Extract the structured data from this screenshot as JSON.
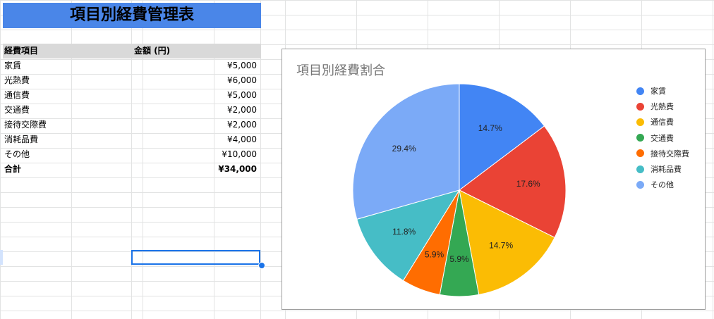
{
  "sheet": {
    "title": "項目別経費管理表",
    "headers": {
      "category": "経費項目",
      "amount": "金額 (円)"
    },
    "rows": [
      {
        "label": "家賃",
        "amount": "¥5,000"
      },
      {
        "label": "光熱費",
        "amount": "¥6,000"
      },
      {
        "label": "通信費",
        "amount": "¥5,000"
      },
      {
        "label": "交通費",
        "amount": "¥2,000"
      },
      {
        "label": "接待交際費",
        "amount": "¥2,000"
      },
      {
        "label": "消耗品費",
        "amount": "¥4,000"
      },
      {
        "label": "その他",
        "amount": "¥10,000"
      }
    ],
    "total": {
      "label": "合計",
      "amount": "¥34,000"
    }
  },
  "chart_data": {
    "type": "pie",
    "title": "項目別経費割合",
    "legend_position": "right",
    "categories": [
      "家賃",
      "光熱費",
      "通信費",
      "交通費",
      "接待交際費",
      "消耗品費",
      "その他"
    ],
    "values": [
      5000,
      6000,
      5000,
      2000,
      2000,
      4000,
      10000
    ],
    "slice_labels": [
      "14.7%",
      "17.6%",
      "14.7%",
      "5.9%",
      "5.9%",
      "11.8%",
      "29.4%"
    ],
    "colors": [
      "#4285f4",
      "#ea4335",
      "#fbbc04",
      "#34a853",
      "#ff6d01",
      "#46bdc6",
      "#7baaf7"
    ]
  }
}
